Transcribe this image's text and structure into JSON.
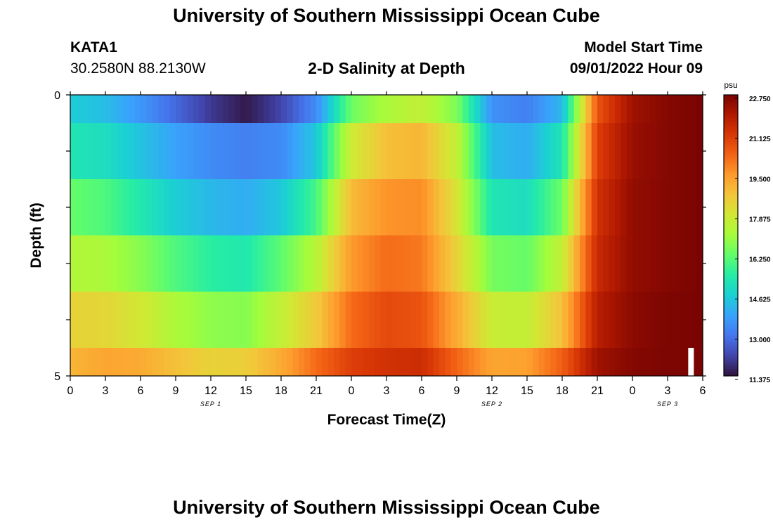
{
  "page": {
    "title": "University of Southern Mississippi Ocean Cube",
    "station": "KATA1",
    "coords": "30.2580N  88.2130W",
    "subtitle": "2-D Salinity at Depth",
    "model_start_label": "Model Start Time",
    "model_start_value": "09/01/2022 Hour 09",
    "footer_title": "University of Southern Mississippi Ocean Cube"
  },
  "colorbar": {
    "unit": "psu",
    "ticks": [
      "22.750",
      "21.125",
      "19.500",
      "17.875",
      "16.250",
      "14.625",
      "13.000",
      "11.375"
    ],
    "colors": [
      "#30123b",
      "#4145ab",
      "#4675ed",
      "#39a2fc",
      "#1bcfd4",
      "#24eca6",
      "#61fc6c",
      "#a4fc3b",
      "#d1e834",
      "#f3c63a",
      "#fe9b2d",
      "#f36315",
      "#d93806",
      "#b11901",
      "#7a0402"
    ]
  },
  "chart_data": {
    "type": "heatmap",
    "title": "2-D Salinity at Depth",
    "xlabel": "Forecast Time(Z)",
    "ylabel": "Depth (ft)",
    "x_tick_labels": [
      "0",
      "3",
      "6",
      "9",
      "12",
      "15",
      "18",
      "21",
      "0",
      "3",
      "6",
      "9",
      "12",
      "15",
      "18",
      "21",
      "0",
      "3",
      "6"
    ],
    "x_hours": [
      0,
      3,
      6,
      9,
      12,
      15,
      18,
      21,
      24,
      27,
      30,
      33,
      36,
      39,
      42,
      45,
      48,
      51,
      54
    ],
    "date_labels": [
      {
        "label": "SEP 1",
        "hour": 12
      },
      {
        "label": "SEP 2",
        "hour": 36
      },
      {
        "label": "SEP 3",
        "hour": 51
      }
    ],
    "xlim": [
      0,
      54
    ],
    "y_tick_labels": [
      "0",
      "5"
    ],
    "ylim": [
      0,
      5
    ],
    "colorbar_range": [
      11.375,
      22.75
    ],
    "colorbar_unit": "psu",
    "layer_bounds_ft": [
      0,
      0.5,
      1.5,
      2.5,
      3.5,
      4.5,
      5
    ],
    "time_knots": [
      0,
      3,
      6,
      9,
      12,
      15,
      18,
      21,
      24,
      27,
      30,
      33,
      36,
      39,
      42,
      45,
      48,
      51,
      54
    ],
    "salinity_rows": [
      [
        14.6,
        14.3,
        13.6,
        12.8,
        12.0,
        11.5,
        12.2,
        13.4,
        16.4,
        17.2,
        17.6,
        16.6,
        13.5,
        13.2,
        14.2,
        20.6,
        22.2,
        22.6,
        22.75
      ],
      [
        15.2,
        15.0,
        14.4,
        13.8,
        13.4,
        13.2,
        13.4,
        14.5,
        17.8,
        18.8,
        19.0,
        17.6,
        14.3,
        14.0,
        15.2,
        21.0,
        22.3,
        22.6,
        22.75
      ],
      [
        16.3,
        16.0,
        15.3,
        14.6,
        14.2,
        14.0,
        14.5,
        15.9,
        18.9,
        19.6,
        19.7,
        18.0,
        15.2,
        15.0,
        16.4,
        21.3,
        22.4,
        22.6,
        22.75
      ],
      [
        17.3,
        17.2,
        16.7,
        16.0,
        15.5,
        15.3,
        16.2,
        17.4,
        19.5,
        20.2,
        20.0,
        18.4,
        16.5,
        16.3,
        17.6,
        21.5,
        22.4,
        22.6,
        22.75
      ],
      [
        18.4,
        18.3,
        17.9,
        17.2,
        16.8,
        16.7,
        17.6,
        18.6,
        20.2,
        20.8,
        20.6,
        19.2,
        17.7,
        17.6,
        18.8,
        21.8,
        22.5,
        22.7,
        22.75
      ],
      [
        19.0,
        19.3,
        19.2,
        18.8,
        18.4,
        18.5,
        19.2,
        20.2,
        21.0,
        21.3,
        21.4,
        20.3,
        19.3,
        19.4,
        20.4,
        22.2,
        22.6,
        22.7,
        22.75
      ]
    ],
    "marker_hour": 53,
    "grid": false
  }
}
